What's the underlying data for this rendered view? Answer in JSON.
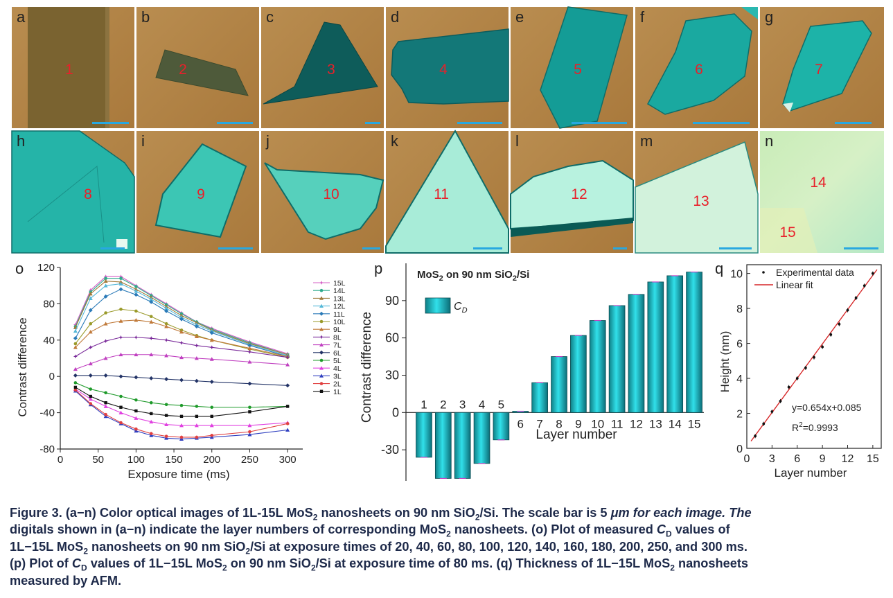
{
  "panels": [
    {
      "letter": "a",
      "number": "1"
    },
    {
      "letter": "b",
      "number": "2"
    },
    {
      "letter": "c",
      "number": "3"
    },
    {
      "letter": "d",
      "number": "4"
    },
    {
      "letter": "e",
      "number": "5"
    },
    {
      "letter": "f",
      "number": "6"
    },
    {
      "letter": "g",
      "number": "7"
    },
    {
      "letter": "h",
      "number": "8"
    },
    {
      "letter": "i",
      "number": "9"
    },
    {
      "letter": "j",
      "number": "10"
    },
    {
      "letter": "k",
      "number": "11"
    },
    {
      "letter": "l",
      "number": "12"
    },
    {
      "letter": "m",
      "number": "13"
    },
    {
      "letter": "n",
      "number": "14"
    },
    {
      "letter": "n2",
      "number": "15"
    }
  ],
  "colors": {
    "substrate": "#b88a4a",
    "flake_dark": "#0f5a5a",
    "flake_mid": "#1aa9a0",
    "flake_light": "#8fe2cf",
    "number": "#e8202a",
    "scalebar": "#28a8e0",
    "caption": "#1e2a4a",
    "fit": "#d62728"
  },
  "caption": {
    "p1a": "Figure 3.  (a−n) Color optical images of 1L-15L MoS",
    "p1b": " nanosheets on 90 nm SiO",
    "p1c": "/Si. The scale bar is 5 ",
    "p1d": "μm for each image. The",
    "p2a": "digitals shown in (a−n) indicate the layer numbers of corresponding MoS",
    "p2b": " nanosheets. (o) Plot of measured ",
    "p2c": " values of",
    "p3a": "1L−15L MoS",
    "p3b": " nanosheets on 90 nm SiO",
    "p3c": "/Si at exposure times of 20, 40, 60, 80, 100, 120, 140, 160, 180, 200, 250, and 300 ms.",
    "p4a": "(p) Plot of ",
    "p4b": " values of 1L−15L MoS",
    "p4c": " on 90 nm SiO",
    "p4d": "/Si at exposure time of 80 ms. (q) Thickness of 1L−15L MoS",
    "p4e": " nanosheets",
    "p5": "measured by AFM.",
    "sub2": "2",
    "cd_c": "C",
    "cd_d": "D"
  },
  "chart_data": [
    {
      "panel": "o",
      "type": "line",
      "xlabel": "Exposure time (ms)",
      "ylabel": "Contrast difference",
      "xlim": [
        0,
        320
      ],
      "ylim": [
        -80,
        120
      ],
      "xticks": [
        0,
        50,
        100,
        150,
        200,
        250,
        300
      ],
      "yticks": [
        -80,
        -40,
        0,
        40,
        80,
        120
      ],
      "x": [
        20,
        40,
        60,
        80,
        100,
        120,
        140,
        160,
        180,
        200,
        250,
        300
      ],
      "legend_position": "right",
      "series": [
        {
          "name": "15L",
          "color": "#d65fc6",
          "marker": "star",
          "values": [
            57,
            95,
            110,
            110,
            100,
            90,
            80,
            70,
            60,
            53,
            38,
            25
          ]
        },
        {
          "name": "14L",
          "color": "#2eaa8c",
          "marker": "circle",
          "values": [
            55,
            93,
            108,
            108,
            99,
            89,
            79,
            69,
            60,
            52,
            37,
            24
          ]
        },
        {
          "name": "13L",
          "color": "#a07a3a",
          "marker": "triangle",
          "values": [
            54,
            91,
            105,
            104,
            96,
            87,
            77,
            67,
            59,
            51,
            36,
            24
          ]
        },
        {
          "name": "12L",
          "color": "#55b8d8",
          "marker": "triangle",
          "values": [
            50,
            86,
            100,
            102,
            94,
            85,
            75,
            65,
            57,
            50,
            35,
            23
          ]
        },
        {
          "name": "11L",
          "color": "#2a7ab8",
          "marker": "diamond",
          "values": [
            42,
            73,
            88,
            96,
            90,
            82,
            72,
            63,
            55,
            48,
            34,
            22
          ]
        },
        {
          "name": "10L",
          "color": "#9a9a2a",
          "marker": "circle",
          "values": [
            36,
            58,
            70,
            74,
            72,
            66,
            58,
            51,
            45,
            40,
            30,
            21
          ]
        },
        {
          "name": "9L",
          "color": "#c07a3a",
          "marker": "triangle",
          "values": [
            32,
            49,
            58,
            61,
            62,
            60,
            55,
            49,
            44,
            40,
            31,
            22
          ]
        },
        {
          "name": "8L",
          "color": "#7a2a9a",
          "marker": "star",
          "values": [
            22,
            32,
            39,
            43,
            43,
            42,
            40,
            37,
            34,
            32,
            27,
            21
          ]
        },
        {
          "name": "7L",
          "color": "#c040c0",
          "marker": "triangle",
          "values": [
            8,
            14,
            20,
            24,
            24,
            24,
            23,
            21,
            20,
            19,
            16,
            13
          ]
        },
        {
          "name": "6L",
          "color": "#223366",
          "marker": "diamond",
          "values": [
            1,
            1,
            1,
            0,
            -1,
            -2,
            -3,
            -4,
            -5,
            -6,
            -8,
            -10
          ]
        },
        {
          "name": "5L",
          "color": "#1e9a2a",
          "marker": "circle",
          "values": [
            -7,
            -14,
            -18,
            -22,
            -26,
            -29,
            -31,
            -32,
            -33,
            -34,
            -34,
            -33
          ]
        },
        {
          "name": "4L",
          "color": "#e040e0",
          "marker": "triangle",
          "values": [
            -14,
            -25,
            -33,
            -40,
            -46,
            -50,
            -53,
            -54,
            -54,
            -54,
            -54,
            -51
          ]
        },
        {
          "name": "3L",
          "color": "#3040c0",
          "marker": "triangle",
          "values": [
            -16,
            -31,
            -44,
            -52,
            -60,
            -65,
            -68,
            -69,
            -68,
            -67,
            -64,
            -59
          ]
        },
        {
          "name": "2L",
          "color": "#e04040",
          "marker": "circle",
          "values": [
            -15,
            -30,
            -42,
            -51,
            -58,
            -63,
            -66,
            -67,
            -67,
            -65,
            -61,
            -52
          ]
        },
        {
          "name": "1L",
          "color": "#111111",
          "marker": "square",
          "values": [
            -12,
            -22,
            -29,
            -34,
            -38,
            -41,
            -43,
            -44,
            -44,
            -44,
            -39,
            -33
          ]
        }
      ]
    },
    {
      "panel": "p",
      "type": "bar",
      "title": "MoS2 on 90 nm SiO2/Si",
      "title_main": "MoS",
      "title_sub1": "2",
      "title_mid": " on 90 nm SiO",
      "title_sub2": "2",
      "title_end": "/Si",
      "xlabel": "Layer number",
      "ylabel": "Contrast difference",
      "legend_c": "C",
      "legend_d": "D",
      "legend_position": "top-left",
      "ylim": [
        -55,
        120
      ],
      "yticks": [
        -30,
        0,
        30,
        60,
        90
      ],
      "ytick_labels": [
        "-30",
        "0",
        "30",
        "60",
        "90"
      ],
      "categories": [
        "1",
        "2",
        "3",
        "4",
        "5",
        "6",
        "7",
        "8",
        "9",
        "10",
        "11",
        "12",
        "13",
        "14",
        "15"
      ],
      "values": [
        -36,
        -53,
        -53,
        -41,
        -22,
        1,
        24,
        45,
        62,
        74,
        86,
        95,
        105,
        110,
        113
      ]
    },
    {
      "panel": "q",
      "type": "scatter",
      "xlabel": "Layer number",
      "ylabel": "Height (nm)",
      "xlim": [
        0,
        16
      ],
      "ylim": [
        0,
        10.5
      ],
      "xticks": [
        0,
        3,
        6,
        9,
        12,
        15
      ],
      "yticks": [
        0,
        2,
        4,
        6,
        8,
        10
      ],
      "legend": [
        "Experimental data",
        "Linear fit"
      ],
      "legend_position": "top-left",
      "equation": "y=0.654x+0.085",
      "r2_base": "R",
      "r2_sup": "2",
      "r2_rest": "=0.9993",
      "x": [
        1,
        2,
        3,
        4,
        5,
        6,
        7,
        8,
        9,
        10,
        11,
        12,
        13,
        14,
        15
      ],
      "y": [
        0.7,
        1.4,
        2.1,
        2.7,
        3.5,
        4.0,
        4.6,
        5.2,
        5.8,
        6.5,
        7.1,
        7.9,
        8.6,
        9.3,
        10.0
      ],
      "fit": {
        "slope": 0.654,
        "intercept": 0.085
      }
    }
  ]
}
